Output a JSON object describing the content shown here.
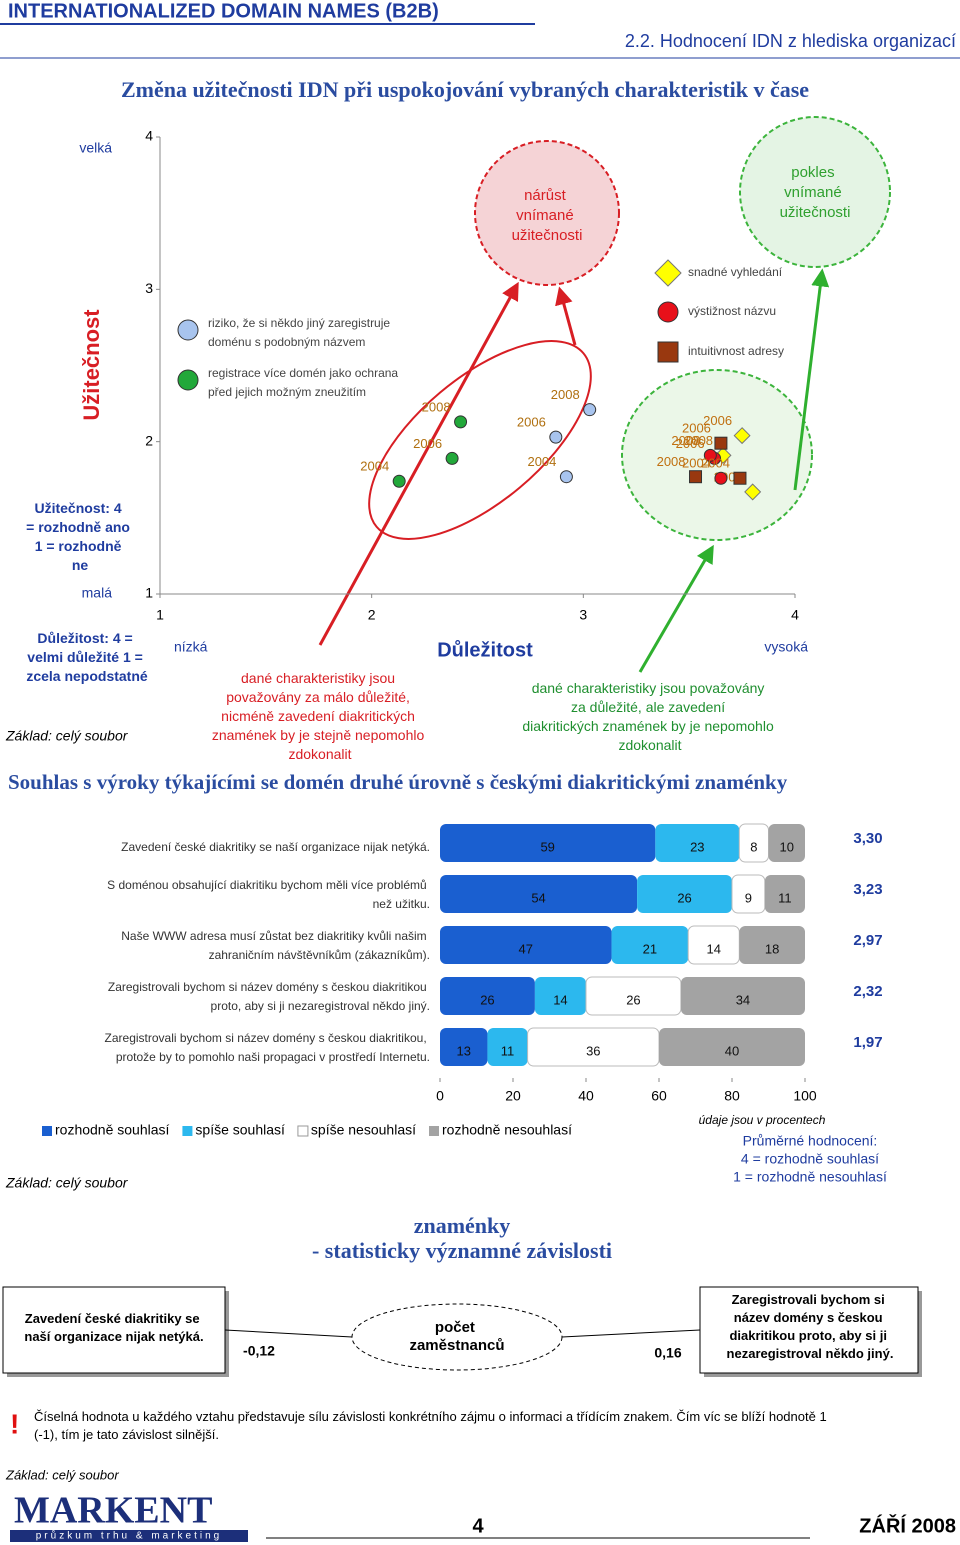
{
  "header": {
    "title": "INTERNATIONALIZED DOMAIN NAMES (B2B)",
    "section": "2.2. Hodnocení IDN z hlediska organizací"
  },
  "chart_data": [
    {
      "type": "scatter",
      "title": "Změna užitečnosti IDN při uspokojování vybraných charakteristik v čase",
      "xlabel": "Důležitost",
      "ylabel": "Užitečnost",
      "xlim": [
        1,
        4
      ],
      "ylim": [
        1,
        4
      ],
      "xticks": [
        1,
        2,
        3,
        4
      ],
      "yticks": [
        1,
        2,
        3,
        4
      ],
      "y_high": "velká",
      "y_low": "malá",
      "x_low": "nízká",
      "x_high": "vysoká",
      "y_note": "Užitečnost: 4 = rozhodně ano 1 = rozhodně ne",
      "x_note": "Důležitost: 4 = velmi důležité 1 = zcela nepodstatné",
      "series": [
        {
          "name": "riziko, že si někdo jiný zaregistruje doménu s podobným názvem",
          "color": "#a8c4ee",
          "marker": "circle",
          "labels": [
            "2004",
            "2006",
            "2008"
          ],
          "x": [
            2.92,
            2.87,
            3.03
          ],
          "y": [
            1.77,
            2.03,
            2.21
          ]
        },
        {
          "name": "registrace více domén jako ochrana před jejich možným zneužitím",
          "color": "#22a83a",
          "marker": "circle",
          "labels": [
            "2004",
            "2006",
            "2008"
          ],
          "x": [
            2.13,
            2.38,
            2.42
          ],
          "y": [
            1.74,
            1.89,
            2.13
          ]
        },
        {
          "name": "snadné vyhledání",
          "color": "#ffff00",
          "marker": "diamond",
          "labels": [
            "2004",
            "2006",
            "2008"
          ],
          "x": [
            3.8,
            3.75,
            3.66
          ],
          "y": [
            1.67,
            2.04,
            1.91
          ]
        },
        {
          "name": "výstižnost názvu",
          "color": "#e8101a",
          "marker": "circle",
          "labels": [
            "2004",
            "2006",
            "2008"
          ],
          "x": [
            3.65,
            3.62,
            3.6
          ],
          "y": [
            1.76,
            1.89,
            1.91
          ]
        },
        {
          "name": "intuitivnost adresy",
          "color": "#99380f",
          "marker": "square",
          "labels": [
            "2004",
            "2006",
            "2008"
          ],
          "x": [
            3.74,
            3.65,
            3.53
          ],
          "y": [
            1.76,
            1.99,
            1.77
          ]
        }
      ],
      "increase": "nárůst vnímané užitečnosti",
      "decrease": "pokles vnímané užitečnosti",
      "low_note": "dané charakteristiky jsou považovány za málo důležité, nicméně zavedení diakritických znamének by je stejně nepomohlo zdokonalit",
      "high_note": "dané charakteristiky jsou považovány za důležité, ale zavedení diakritických znamének by je nepomohlo zdokonalit",
      "base": "Základ: celý soubor"
    },
    {
      "type": "bar",
      "stacked": true,
      "orientation": "horizontal",
      "title": "Souhlas s výroky týkajícími se domén druhé úrovně s českými diakritickými znaménky",
      "categories": [
        "Zavedení české diakritiky se naší organizace nijak netýká.",
        "S doménou obsahující diakritiku bychom měli více problémů než užitku.",
        "Naše WWW adresa musí zůstat bez diakritiky kvůli našim zahraničním návštěvníkům (zákazníkům).",
        "Zaregistrovali bychom si název domény s českou diakritikou proto, aby si ji nezaregistroval někdo jiný.",
        "Zaregistrovali bychom si název domény s českou diakritikou, protože by to pomohlo naši propagaci v prostředí Internetu."
      ],
      "series": [
        {
          "name": "rozhodně souhlasí",
          "color": "#1a5fd0",
          "values": [
            59,
            54,
            47,
            26,
            13
          ]
        },
        {
          "name": "spíše souhlasí",
          "color": "#2cb8ee",
          "values": [
            23,
            26,
            21,
            14,
            11
          ]
        },
        {
          "name": "spíše nesouhlasí",
          "color": "#ffffff",
          "values": [
            8,
            9,
            14,
            26,
            36
          ]
        },
        {
          "name": "rozhodně nesouhlasí",
          "color": "#a3a3a3",
          "values": [
            10,
            11,
            18,
            34,
            40
          ]
        }
      ],
      "xlim": [
        0,
        100
      ],
      "xticks": [
        0,
        20,
        40,
        60,
        80,
        100
      ],
      "means": {
        "values": [
          3.3,
          3.23,
          2.97,
          2.32,
          1.97
        ],
        "value_labels": [
          "3,30",
          "3,23",
          "2,97",
          "2,32",
          "1,97"
        ]
      },
      "unit_note": "údaje jsou v procentech",
      "mean_legend": [
        "Průměrné hodnocení:",
        "4 = rozhodně souhlasí",
        "1 = rozhodně nesouhlasí"
      ],
      "base": "Základ: celý soubor"
    }
  ],
  "correlation": {
    "title": [
      "znaménky",
      "- statisticky významné závislosti"
    ],
    "left": "Zavedení české diakritiky se naší organizace nijak netýká.",
    "left_value": "-0,12",
    "center": "počet zaměstnanců",
    "right_value": "0,16",
    "right": "Zaregistrovali bychom si název domény s českou diakritikou proto, aby si ji nezaregistroval někdo jiný.",
    "mark": "!",
    "note": "Číselná hodnota u každého vztahu představuje sílu závislosti konkrétního zájmu o informaci a třídícím znakem. Čím víc se blíží hodnotě 1 (-1), tím je tato závislost silnější.",
    "base": "Základ: celý soubor"
  },
  "footer": {
    "logo": "MARKENT",
    "tagline": "průzkum trhu & marketing",
    "page": "4",
    "date": "ZÁŘÍ 2008"
  }
}
